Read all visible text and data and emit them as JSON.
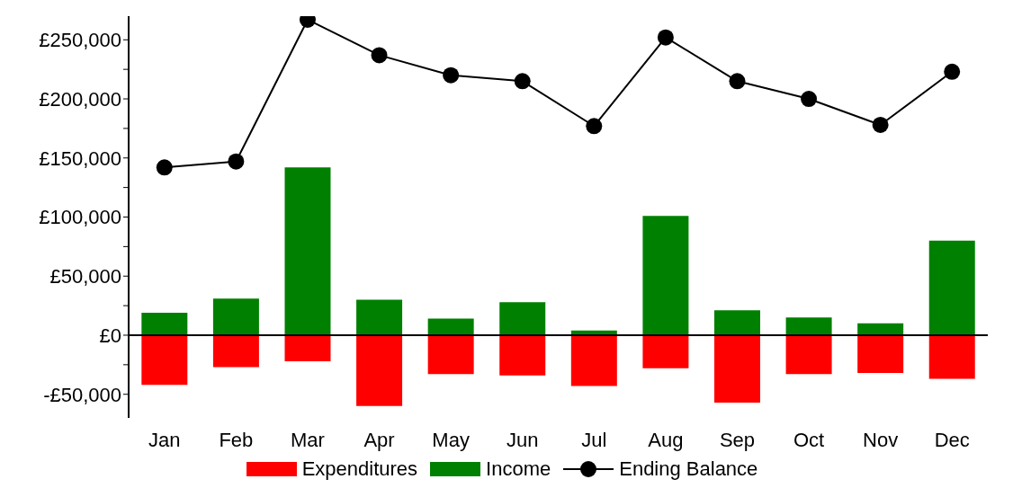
{
  "chart_data": {
    "type": "bar",
    "stacked": true,
    "categories": [
      "Jan",
      "Feb",
      "Mar",
      "Apr",
      "May",
      "Jun",
      "Jul",
      "Aug",
      "Sep",
      "Oct",
      "Nov",
      "Dec"
    ],
    "series": [
      {
        "name": "Expenditures",
        "color": "#ff0000",
        "values": [
          -42000,
          -27000,
          -22000,
          -60000,
          -33000,
          -34000,
          -43000,
          -28000,
          -57000,
          -33000,
          -32000,
          -37000
        ]
      },
      {
        "name": "Income",
        "color": "#008000",
        "values": [
          19000,
          31000,
          142000,
          30000,
          14000,
          28000,
          4000,
          101000,
          21000,
          15000,
          10000,
          80000
        ]
      },
      {
        "name": "Ending Balance",
        "type": "line",
        "color": "#000000",
        "values": [
          142000,
          147000,
          267000,
          237000,
          220000,
          215000,
          177000,
          252000,
          215000,
          200000,
          178000,
          223000
        ]
      }
    ],
    "ylim": [
      -70000,
      270000
    ],
    "yticks": [
      {
        "value": -50000,
        "label": "-£50,000"
      },
      {
        "value": -25000,
        "label": null
      },
      {
        "value": 0,
        "label": "£0"
      },
      {
        "value": 25000,
        "label": null
      },
      {
        "value": 50000,
        "label": "£50,000"
      },
      {
        "value": 75000,
        "label": null
      },
      {
        "value": 100000,
        "label": "£100,000"
      },
      {
        "value": 125000,
        "label": null
      },
      {
        "value": 150000,
        "label": "£150,000"
      },
      {
        "value": 175000,
        "label": null
      },
      {
        "value": 200000,
        "label": "£200,000"
      },
      {
        "value": 225000,
        "label": null
      },
      {
        "value": 250000,
        "label": "£250,000"
      }
    ],
    "legend": "bottom",
    "marker": "circle",
    "line_style": "solid"
  }
}
